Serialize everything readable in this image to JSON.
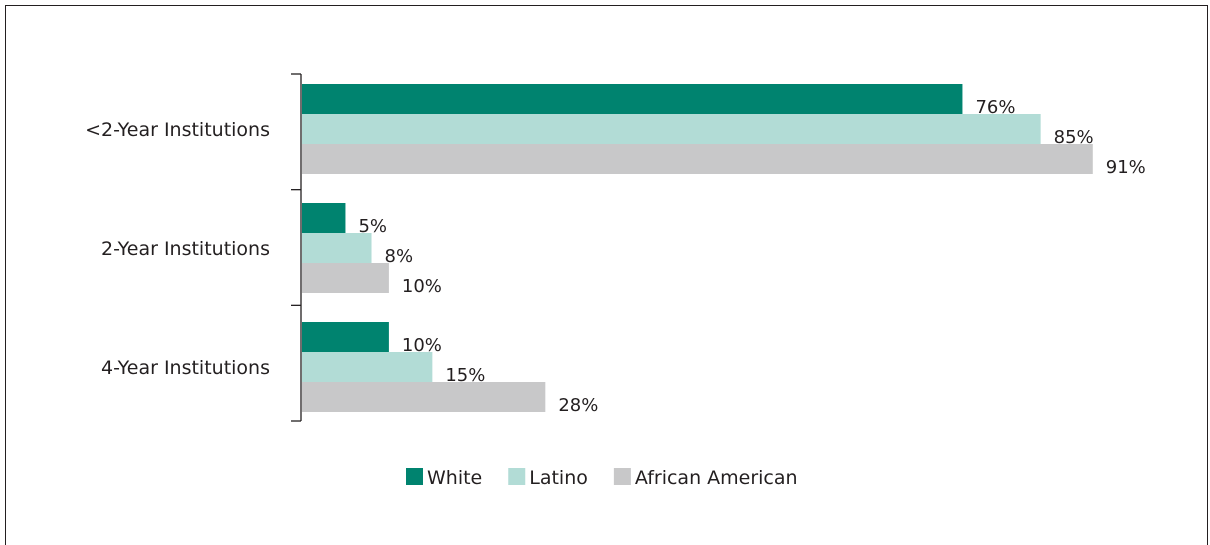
{
  "chart_data": {
    "type": "bar",
    "orientation": "horizontal",
    "categories": [
      "<2-Year Institutions",
      "2-Year Institutions",
      "4-Year Institutions"
    ],
    "series": [
      {
        "name": "White",
        "color": "#00836f",
        "values": [
          76,
          5,
          10
        ],
        "labels": [
          "76%",
          "5%",
          "10%"
        ]
      },
      {
        "name": "Latino",
        "color": "#b2dcd6",
        "values": [
          85,
          8,
          15
        ],
        "labels": [
          "85%",
          "8%",
          "15%"
        ]
      },
      {
        "name": "African American",
        "color": "#c8c8c9",
        "values": [
          91,
          10,
          28
        ],
        "labels": [
          "91%",
          "10%",
          "28%"
        ]
      }
    ],
    "xlim": [
      0,
      100
    ],
    "grid": false,
    "legend_position": "bottom"
  }
}
